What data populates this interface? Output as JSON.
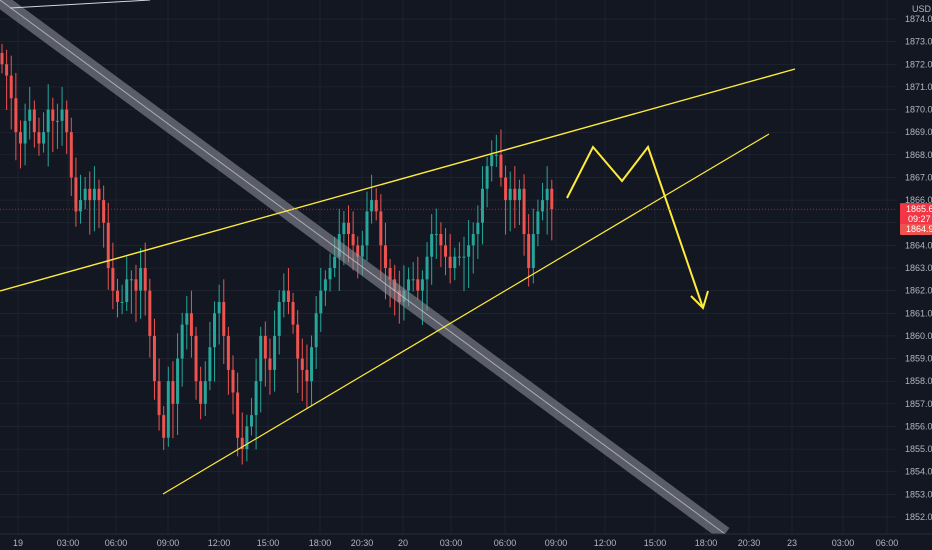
{
  "chart_data": {
    "type": "candlestick",
    "currency": "USD",
    "price_axis": {
      "range": [
        1851.5,
        1874.5
      ],
      "ticks": [
        1852.0,
        1853.0,
        1854.0,
        1855.0,
        1856.0,
        1857.0,
        1858.0,
        1859.0,
        1860.0,
        1861.0,
        1862.0,
        1863.0,
        1864.0,
        1865.0,
        1866.0,
        1867.0,
        1868.0,
        1869.0,
        1870.0,
        1871.0,
        1872.0,
        1873.0,
        1874.0
      ],
      "tick_labels": [
        "1852.0",
        "1853.0",
        "1854.0",
        "1855.0",
        "1856.0",
        "1857.0",
        "1858.0",
        "1859.0",
        "1860.0",
        "1861.0",
        "1862.0",
        "1863.0",
        "1864.0",
        "1865.0",
        "1866.0",
        "1867.0",
        "1868.0",
        "1869.0",
        "1870.0",
        "1871.0",
        "1872.0",
        "1873.0",
        "1874.0"
      ]
    },
    "time_axis": {
      "labels": [
        "19",
        "03:00",
        "06:00",
        "09:00",
        "12:00",
        "15:00",
        "18:00",
        "20:30",
        "20",
        "03:00",
        "06:00",
        "09:00",
        "12:00",
        "15:00",
        "18:00",
        "20:30",
        "23",
        "03:00",
        "06:00"
      ]
    },
    "last_price": {
      "label": "1865.6",
      "value": 1865.6,
      "countdown": "09:27"
    },
    "bid_label": {
      "label": "1864.9",
      "value": 1864.9
    },
    "candle_close_series": [
      1872,
      1871.5,
      1870.5,
      1869,
      1868.5,
      1869.5,
      1870,
      1869,
      1868.5,
      1869,
      1870,
      1869.5,
      1869.5,
      1870,
      1869,
      1867,
      1865.5,
      1866,
      1866.5,
      1866,
      1866.5,
      1866,
      1865,
      1863,
      1862,
      1861.5,
      1861.5,
      1862.5,
      1862.5,
      1862,
      1863,
      1862,
      1860,
      1858,
      1856.5,
      1855.5,
      1858,
      1857,
      1859,
      1860.5,
      1861,
      1860,
      1858,
      1857,
      1858,
      1859.5,
      1861,
      1861.5,
      1860,
      1858.5,
      1857.5,
      1855.5,
      1855,
      1856,
      1856.5,
      1858,
      1860,
      1859,
      1858.5,
      1860,
      1861.5,
      1862,
      1861.5,
      1860.5,
      1859,
      1858.5,
      1858,
      1859.5,
      1861,
      1862,
      1862.5,
      1863,
      1863.5,
      1864.5,
      1865,
      1864.5,
      1864,
      1863.5,
      1864,
      1865.5,
      1866,
      1865.5,
      1864,
      1863,
      1862.5,
      1862,
      1861.5,
      1862,
      1862.5,
      1862.5,
      1862,
      1862.5,
      1863.5,
      1864.5,
      1864.5,
      1864,
      1863.5,
      1863,
      1863.5,
      1863.5,
      1863.5,
      1864,
      1864.5,
      1865,
      1866.5,
      1867.5,
      1868,
      1868,
      1867,
      1866,
      1866.5,
      1866,
      1866.5,
      1864.5,
      1863,
      1864.5,
      1865.5,
      1866,
      1866.5,
      1865.6
    ],
    "trendlines": [
      {
        "color": "#ffeb3b",
        "role": "upper"
      },
      {
        "color": "#ffeb3b",
        "role": "lower"
      },
      {
        "color": "#b8bcc6",
        "role": "diagonal-channel"
      }
    ],
    "projection": {
      "color": "#ffeb3b"
    },
    "colors": {
      "up": "#26a69a",
      "down": "#ef5350",
      "background": "#131722",
      "grid": "#2a2e39",
      "axis_text": "#b2b5be",
      "price_line": "#f23645"
    }
  }
}
